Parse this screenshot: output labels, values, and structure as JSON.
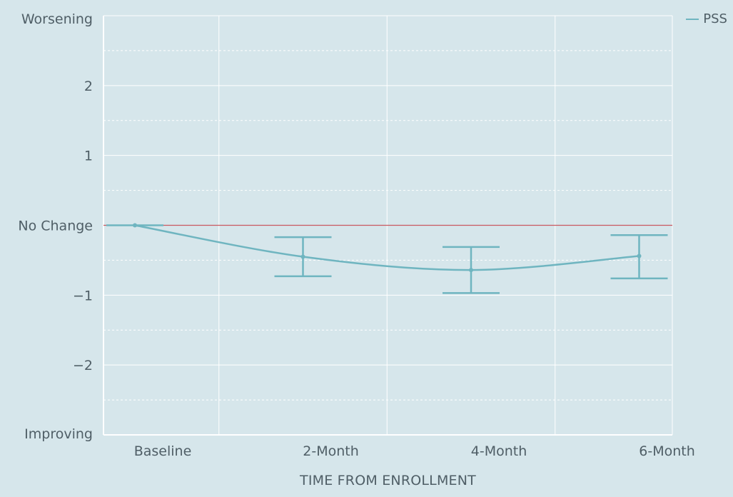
{
  "colors": {
    "background": "#d6e6eb",
    "series": "#6fb5c0",
    "reference_line": "#c9585f",
    "grid": "#ffffff",
    "text": "#4f5e66"
  },
  "legend": {
    "label": "PSS",
    "placement": "top-right"
  },
  "chart_data": {
    "type": "line",
    "categories": [
      "Baseline",
      "2-Month",
      "4-Month",
      "6-Month"
    ],
    "series": [
      {
        "name": "PSS",
        "values": [
          0,
          -0.45,
          -0.64,
          -0.44
        ],
        "error_low": [
          0,
          -0.73,
          -0.97,
          -0.76
        ],
        "error_high": [
          0,
          -0.17,
          -0.31,
          -0.14
        ]
      }
    ],
    "reference_line": {
      "y": 0,
      "color": "#c9585f"
    },
    "xlabel": "TIME FROM ENROLLMENT",
    "ylabel": "",
    "ylim": [
      -3,
      3
    ],
    "yticks": [
      {
        "value": 3,
        "label": "Worsening"
      },
      {
        "value": 2,
        "label": "2"
      },
      {
        "value": 1,
        "label": "1"
      },
      {
        "value": 0,
        "label": "No Change"
      },
      {
        "value": -1,
        "label": "−1"
      },
      {
        "value": -2,
        "label": "−2"
      },
      {
        "value": -3,
        "label": "Improving"
      }
    ],
    "grid": true
  }
}
